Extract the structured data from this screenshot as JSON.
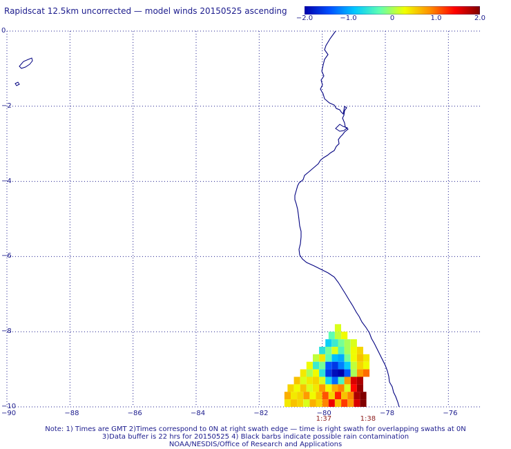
{
  "title": "Rapidscat 12.5km uncorrected — model winds 20150525 ascending",
  "colorbar": {
    "ticks": [
      "−2.0",
      "−1.0",
      "0",
      "1.0",
      "2.0"
    ],
    "tick_values": [
      -2.0,
      -1.0,
      0,
      1.0,
      2.0
    ],
    "colors": [
      "#0000aa",
      "#0050ff",
      "#00c8ff",
      "#60ffb0",
      "#f0ff00",
      "#ff9000",
      "#ff0000",
      "#800000"
    ]
  },
  "axes": {
    "x_ticks": [
      "−90",
      "−88",
      "−86",
      "−84",
      "−82",
      "−80",
      "−78",
      "−76"
    ],
    "x_values": [
      -90,
      -88,
      -86,
      -84,
      -82,
      -80,
      -78,
      -76
    ],
    "y_ticks": [
      "0",
      "−2",
      "−4",
      "−6",
      "−8",
      "−10"
    ],
    "y_values": [
      0,
      -2,
      -4,
      -6,
      -8,
      -10
    ],
    "lon_range": [
      -90,
      -75
    ],
    "lat_range": [
      -10,
      0
    ],
    "grid": "dotted"
  },
  "swath_times": [
    {
      "label": "1:37",
      "lon": -80
    },
    {
      "label": "1:38",
      "lon": -78.6
    }
  ],
  "notes": [
    "Note: 1) Times are GMT 2)Times correspond to 0N at right swath edge — time is right swath for overlapping swaths at 0N",
    "3)Data buffer is 22 hrs for 20150525 4) Black barbs indicate possible rain contamination",
    "NOAA/NESDIS/Office of Research and Applications"
  ],
  "colors": {
    "text": "#1a1a8c",
    "coast": "#000080",
    "grid": "#1a1a8c",
    "time_label": "#8b1a1a"
  },
  "swath": {
    "cell_deg": 0.2,
    "rows": [
      {
        "lat": -8.0,
        "lon_start": -79.6,
        "values": [
          0.2
        ]
      },
      {
        "lat": -8.2,
        "lon_start": -79.8,
        "values": [
          -0.3,
          0.1,
          0.3
        ]
      },
      {
        "lat": -8.4,
        "lon_start": -79.9,
        "values": [
          -0.8,
          -0.5,
          -0.2,
          0.0,
          0.2
        ]
      },
      {
        "lat": -8.6,
        "lon_start": -80.1,
        "values": [
          -0.6,
          -0.2,
          0.2,
          -0.4,
          0.0,
          0.3,
          0.5
        ]
      },
      {
        "lat": -8.8,
        "lon_start": -80.3,
        "values": [
          0.1,
          0.4,
          -0.3,
          -0.9,
          -1.0,
          -0.2,
          0.3,
          0.6,
          0.4
        ]
      },
      {
        "lat": -9.0,
        "lon_start": -80.5,
        "values": [
          0.3,
          -0.5,
          -0.2,
          -1.4,
          -1.6,
          -1.2,
          -0.8,
          0.1,
          0.5,
          0.3
        ]
      },
      {
        "lat": -9.2,
        "lon_start": -80.7,
        "values": [
          0.4,
          0.0,
          0.3,
          -0.6,
          -1.6,
          -1.9,
          -2.0,
          -1.4,
          0.0,
          0.8,
          1.0
        ]
      },
      {
        "lat": -9.4,
        "lon_start": -80.9,
        "values": [
          0.6,
          0.2,
          0.4,
          0.5,
          0.2,
          -0.7,
          -1.3,
          -0.4,
          0.8,
          1.6,
          1.8
        ]
      },
      {
        "lat": -9.6,
        "lon_start": -81.1,
        "values": [
          0.5,
          0.3,
          0.6,
          0.2,
          0.4,
          0.8,
          0.3,
          0.7,
          0.9,
          0.2,
          1.4,
          1.9
        ]
      },
      {
        "lat": -9.8,
        "lon_start": -81.2,
        "values": [
          0.7,
          0.4,
          0.5,
          0.8,
          0.3,
          0.6,
          1.1,
          0.5,
          1.3,
          0.6,
          0.9,
          1.8,
          2.0
        ]
      },
      {
        "lat": -10.0,
        "lon_start": -81.2,
        "values": [
          0.4,
          0.6,
          0.5,
          0.2,
          0.7,
          0.5,
          0.9,
          1.5,
          0.6,
          1.2,
          0.8,
          1.6,
          2.0
        ]
      }
    ]
  }
}
